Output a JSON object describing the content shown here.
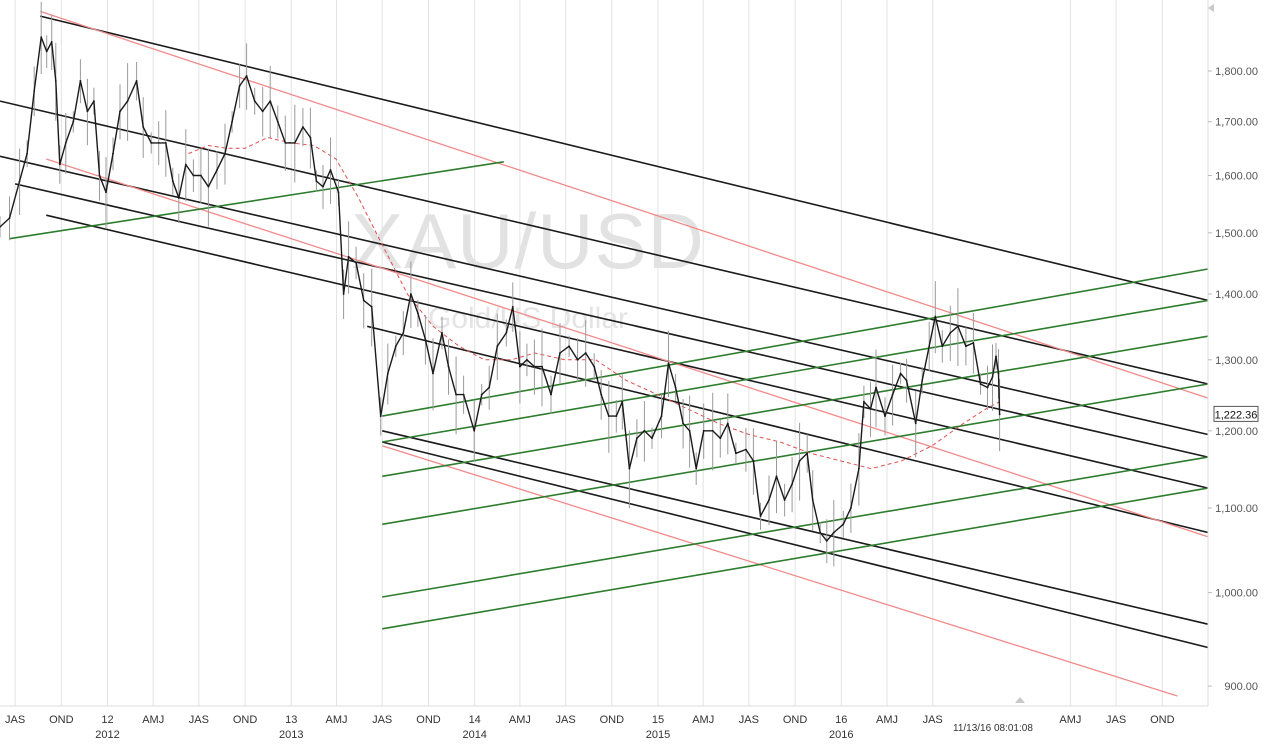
{
  "chart_data": {
    "type": "line",
    "watermark": {
      "symbol": "XAU/USD",
      "name": "Gold/US Dollar"
    },
    "y_axis": {
      "position": "right",
      "scale": "log",
      "range": [
        880,
        1950
      ],
      "ticks": [
        {
          "value": 900,
          "label": "900.00"
        },
        {
          "value": 1000,
          "label": "1,000.00"
        },
        {
          "value": 1100,
          "label": "1,100.00"
        },
        {
          "value": 1200,
          "label": "1,200.00"
        },
        {
          "value": 1300,
          "label": "1,300.00"
        },
        {
          "value": 1400,
          "label": "1,400.00"
        },
        {
          "value": 1500,
          "label": "1,500.00"
        },
        {
          "value": 1600,
          "label": "1,600.00"
        },
        {
          "value": 1700,
          "label": "1,700.00"
        },
        {
          "value": 1800,
          "label": "1,800.00"
        }
      ]
    },
    "x_axis": {
      "range": [
        "2011-06-01",
        "2017-12-31"
      ],
      "period_ticks": [
        {
          "date": "2011-07-01",
          "label": "JAS"
        },
        {
          "date": "2011-10-01",
          "label": "OND"
        },
        {
          "date": "2012-01-01",
          "label": "12",
          "year": "2012"
        },
        {
          "date": "2012-04-01",
          "label": "AMJ"
        },
        {
          "date": "2012-07-01",
          "label": "JAS"
        },
        {
          "date": "2012-10-01",
          "label": "OND"
        },
        {
          "date": "2013-01-01",
          "label": "13",
          "year": "2013"
        },
        {
          "date": "2013-04-01",
          "label": "AMJ"
        },
        {
          "date": "2013-07-01",
          "label": "JAS"
        },
        {
          "date": "2013-10-01",
          "label": "OND"
        },
        {
          "date": "2014-01-01",
          "label": "14",
          "year": "2014"
        },
        {
          "date": "2014-04-01",
          "label": "AMJ"
        },
        {
          "date": "2014-07-01",
          "label": "JAS"
        },
        {
          "date": "2014-10-01",
          "label": "OND"
        },
        {
          "date": "2015-01-01",
          "label": "15",
          "year": "2015"
        },
        {
          "date": "2015-04-01",
          "label": "AMJ"
        },
        {
          "date": "2015-07-01",
          "label": "JAS"
        },
        {
          "date": "2015-10-01",
          "label": "OND"
        },
        {
          "date": "2016-01-01",
          "label": "16",
          "year": "2016"
        },
        {
          "date": "2016-04-01",
          "label": "AMJ"
        },
        {
          "date": "2016-07-01",
          "label": "JAS"
        },
        {
          "date": "2017-04-01",
          "label": "AMJ"
        },
        {
          "date": "2017-07-01",
          "label": "JAS"
        },
        {
          "date": "2017-10-01",
          "label": "OND"
        }
      ]
    },
    "timestamp": "11/13/16 08:01:08",
    "last_price": {
      "label": "1,222.36",
      "value": 1222.36
    },
    "grid": "vertical",
    "colors": {
      "price": "#1a1a1a",
      "wick": "#9a9a9a",
      "ma": "#e05050",
      "black_channel": "#1a1a1a",
      "green_channel": "#2e7d2e",
      "red_channel": "#f28a8a",
      "grid": "#e3e3e3",
      "watermark": "#e2e2e2"
    },
    "series": [
      {
        "kind": "price",
        "points": [
          [
            "2011-06-01",
            1510
          ],
          [
            "2011-06-20",
            1525
          ],
          [
            "2011-07-10",
            1590
          ],
          [
            "2011-07-25",
            1640
          ],
          [
            "2011-08-08",
            1760
          ],
          [
            "2011-08-22",
            1870
          ],
          [
            "2011-09-02",
            1840
          ],
          [
            "2011-09-12",
            1860
          ],
          [
            "2011-09-20",
            1780
          ],
          [
            "2011-09-28",
            1620
          ],
          [
            "2011-10-10",
            1660
          ],
          [
            "2011-10-25",
            1700
          ],
          [
            "2011-11-08",
            1780
          ],
          [
            "2011-11-22",
            1720
          ],
          [
            "2011-12-05",
            1740
          ],
          [
            "2011-12-16",
            1600
          ],
          [
            "2011-12-29",
            1570
          ],
          [
            "2012-01-12",
            1640
          ],
          [
            "2012-01-26",
            1720
          ],
          [
            "2012-02-10",
            1740
          ],
          [
            "2012-02-28",
            1780
          ],
          [
            "2012-03-12",
            1690
          ],
          [
            "2012-03-28",
            1660
          ],
          [
            "2012-04-12",
            1660
          ],
          [
            "2012-04-26",
            1660
          ],
          [
            "2012-05-10",
            1590
          ],
          [
            "2012-05-22",
            1560
          ],
          [
            "2012-06-05",
            1620
          ],
          [
            "2012-06-20",
            1600
          ],
          [
            "2012-07-05",
            1600
          ],
          [
            "2012-07-20",
            1580
          ],
          [
            "2012-08-06",
            1610
          ],
          [
            "2012-08-22",
            1640
          ],
          [
            "2012-09-05",
            1700
          ],
          [
            "2012-09-20",
            1770
          ],
          [
            "2012-10-04",
            1790
          ],
          [
            "2012-10-20",
            1740
          ],
          [
            "2012-11-05",
            1720
          ],
          [
            "2012-11-20",
            1740
          ],
          [
            "2012-12-05",
            1700
          ],
          [
            "2012-12-20",
            1660
          ],
          [
            "2013-01-08",
            1660
          ],
          [
            "2013-01-24",
            1690
          ],
          [
            "2013-02-08",
            1670
          ],
          [
            "2013-02-20",
            1590
          ],
          [
            "2013-03-05",
            1580
          ],
          [
            "2013-03-20",
            1610
          ],
          [
            "2013-04-05",
            1570
          ],
          [
            "2013-04-15",
            1400
          ],
          [
            "2013-04-25",
            1460
          ],
          [
            "2013-05-10",
            1450
          ],
          [
            "2013-05-25",
            1390
          ],
          [
            "2013-06-10",
            1380
          ],
          [
            "2013-06-28",
            1220
          ],
          [
            "2013-07-12",
            1280
          ],
          [
            "2013-07-28",
            1320
          ],
          [
            "2013-08-12",
            1340
          ],
          [
            "2013-08-27",
            1400
          ],
          [
            "2013-09-10",
            1370
          ],
          [
            "2013-09-25",
            1330
          ],
          [
            "2013-10-10",
            1280
          ],
          [
            "2013-10-28",
            1340
          ],
          [
            "2013-11-10",
            1290
          ],
          [
            "2013-11-25",
            1250
          ],
          [
            "2013-12-10",
            1250
          ],
          [
            "2013-12-31",
            1200
          ],
          [
            "2014-01-15",
            1250
          ],
          [
            "2014-01-30",
            1260
          ],
          [
            "2014-02-15",
            1320
          ],
          [
            "2014-03-05",
            1340
          ],
          [
            "2014-03-18",
            1380
          ],
          [
            "2014-04-01",
            1290
          ],
          [
            "2014-04-15",
            1300
          ],
          [
            "2014-04-30",
            1290
          ],
          [
            "2014-05-15",
            1290
          ],
          [
            "2014-06-02",
            1250
          ],
          [
            "2014-06-20",
            1310
          ],
          [
            "2014-07-08",
            1320
          ],
          [
            "2014-07-25",
            1300
          ],
          [
            "2014-08-10",
            1310
          ],
          [
            "2014-08-27",
            1290
          ],
          [
            "2014-09-10",
            1250
          ],
          [
            "2014-09-25",
            1220
          ],
          [
            "2014-10-10",
            1220
          ],
          [
            "2014-10-22",
            1240
          ],
          [
            "2014-11-05",
            1150
          ],
          [
            "2014-11-20",
            1190
          ],
          [
            "2014-12-05",
            1200
          ],
          [
            "2014-12-20",
            1190
          ],
          [
            "2015-01-08",
            1220
          ],
          [
            "2015-01-22",
            1295
          ],
          [
            "2015-02-05",
            1260
          ],
          [
            "2015-02-20",
            1210
          ],
          [
            "2015-03-05",
            1200
          ],
          [
            "2015-03-18",
            1150
          ],
          [
            "2015-04-02",
            1200
          ],
          [
            "2015-04-20",
            1200
          ],
          [
            "2015-05-05",
            1190
          ],
          [
            "2015-05-20",
            1210
          ],
          [
            "2015-06-05",
            1170
          ],
          [
            "2015-06-25",
            1175
          ],
          [
            "2015-07-10",
            1160
          ],
          [
            "2015-07-24",
            1090
          ],
          [
            "2015-08-10",
            1110
          ],
          [
            "2015-08-25",
            1140
          ],
          [
            "2015-09-10",
            1110
          ],
          [
            "2015-09-25",
            1130
          ],
          [
            "2015-10-10",
            1160
          ],
          [
            "2015-10-25",
            1170
          ],
          [
            "2015-11-05",
            1110
          ],
          [
            "2015-11-20",
            1070
          ],
          [
            "2015-12-03",
            1060
          ],
          [
            "2015-12-17",
            1070
          ],
          [
            "2016-01-05",
            1080
          ],
          [
            "2016-01-20",
            1100
          ],
          [
            "2016-02-05",
            1150
          ],
          [
            "2016-02-15",
            1240
          ],
          [
            "2016-02-28",
            1230
          ],
          [
            "2016-03-10",
            1260
          ],
          [
            "2016-03-28",
            1220
          ],
          [
            "2016-04-12",
            1250
          ],
          [
            "2016-04-28",
            1280
          ],
          [
            "2016-05-10",
            1270
          ],
          [
            "2016-05-28",
            1210
          ],
          [
            "2016-06-10",
            1270
          ],
          [
            "2016-06-24",
            1320
          ],
          [
            "2016-07-06",
            1365
          ],
          [
            "2016-07-20",
            1320
          ],
          [
            "2016-08-05",
            1340
          ],
          [
            "2016-08-20",
            1350
          ],
          [
            "2016-09-05",
            1320
          ],
          [
            "2016-09-20",
            1325
          ],
          [
            "2016-10-04",
            1265
          ],
          [
            "2016-10-18",
            1260
          ],
          [
            "2016-10-28",
            1275
          ],
          [
            "2016-11-04",
            1305
          ],
          [
            "2016-11-09",
            1280
          ],
          [
            "2016-11-11",
            1222.36
          ]
        ]
      },
      {
        "kind": "moving_average",
        "points": [
          [
            "2012-06-10",
            1640
          ],
          [
            "2012-07-20",
            1655
          ],
          [
            "2012-08-25",
            1650
          ],
          [
            "2012-10-01",
            1650
          ],
          [
            "2012-11-15",
            1670
          ],
          [
            "2012-12-31",
            1660
          ],
          [
            "2013-02-15",
            1655
          ],
          [
            "2013-03-31",
            1630
          ],
          [
            "2013-05-15",
            1560
          ],
          [
            "2013-07-01",
            1480
          ],
          [
            "2013-08-20",
            1400
          ],
          [
            "2013-10-10",
            1350
          ],
          [
            "2013-12-01",
            1320
          ],
          [
            "2014-01-20",
            1300
          ],
          [
            "2014-03-15",
            1300
          ],
          [
            "2014-05-01",
            1310
          ],
          [
            "2014-06-30",
            1300
          ],
          [
            "2014-08-30",
            1300
          ],
          [
            "2014-10-30",
            1270
          ],
          [
            "2014-12-31",
            1250
          ],
          [
            "2015-03-01",
            1230
          ],
          [
            "2015-05-01",
            1210
          ],
          [
            "2015-07-01",
            1195
          ],
          [
            "2015-09-01",
            1185
          ],
          [
            "2015-11-01",
            1170
          ],
          [
            "2015-12-31",
            1160
          ],
          [
            "2016-02-29",
            1150
          ],
          [
            "2016-04-30",
            1160
          ],
          [
            "2016-06-30",
            1180
          ],
          [
            "2016-08-31",
            1210
          ],
          [
            "2016-10-15",
            1230
          ],
          [
            "2016-11-11",
            1240
          ]
        ]
      }
    ],
    "trendlines": [
      {
        "color": "black",
        "from": [
          "2011-08-20",
          1915
        ],
        "to": [
          "2017-12-31",
          1390
        ]
      },
      {
        "color": "black",
        "from": [
          "2011-06-01",
          1740
        ],
        "to": [
          "2017-12-31",
          1265
        ]
      },
      {
        "color": "black",
        "from": [
          "2011-06-01",
          1635
        ],
        "to": [
          "2017-12-31",
          1195
        ]
      },
      {
        "color": "black",
        "from": [
          "2011-07-01",
          1585
        ],
        "to": [
          "2017-12-31",
          1165
        ]
      },
      {
        "color": "black",
        "from": [
          "2011-09-01",
          1530
        ],
        "to": [
          "2017-12-31",
          1125
        ]
      },
      {
        "color": "black",
        "from": [
          "2013-06-01",
          1350
        ],
        "to": [
          "2017-12-31",
          1070
        ]
      },
      {
        "color": "black",
        "from": [
          "2013-07-01",
          1200
        ],
        "to": [
          "2017-12-31",
          965
        ]
      },
      {
        "color": "black",
        "from": [
          "2013-07-01",
          1185
        ],
        "to": [
          "2017-12-31",
          940
        ]
      },
      {
        "color": "red",
        "from": [
          "2011-08-20",
          1925
        ],
        "to": [
          "2017-12-31",
          1245
        ]
      },
      {
        "color": "red",
        "from": [
          "2011-09-01",
          1630
        ],
        "to": [
          "2017-12-31",
          1065
        ]
      },
      {
        "color": "red",
        "from": [
          "2013-07-01",
          1180
        ],
        "to": [
          "2017-10-31",
          890
        ]
      },
      {
        "color": "green",
        "from": [
          "2011-06-20",
          1490
        ],
        "to": [
          "2014-02-28",
          1625
        ]
      },
      {
        "color": "green",
        "from": [
          "2013-07-01",
          1220
        ],
        "to": [
          "2017-12-31",
          1440
        ]
      },
      {
        "color": "green",
        "from": [
          "2013-07-01",
          1185
        ],
        "to": [
          "2017-12-31",
          1390
        ]
      },
      {
        "color": "green",
        "from": [
          "2013-07-01",
          1140
        ],
        "to": [
          "2017-12-31",
          1335
        ]
      },
      {
        "color": "green",
        "from": [
          "2013-07-01",
          1080
        ],
        "to": [
          "2017-12-31",
          1265
        ]
      },
      {
        "color": "green",
        "from": [
          "2013-07-01",
          995
        ],
        "to": [
          "2017-12-31",
          1165
        ]
      },
      {
        "color": "green",
        "from": [
          "2013-07-01",
          960
        ],
        "to": [
          "2017-12-31",
          1125
        ]
      }
    ]
  }
}
